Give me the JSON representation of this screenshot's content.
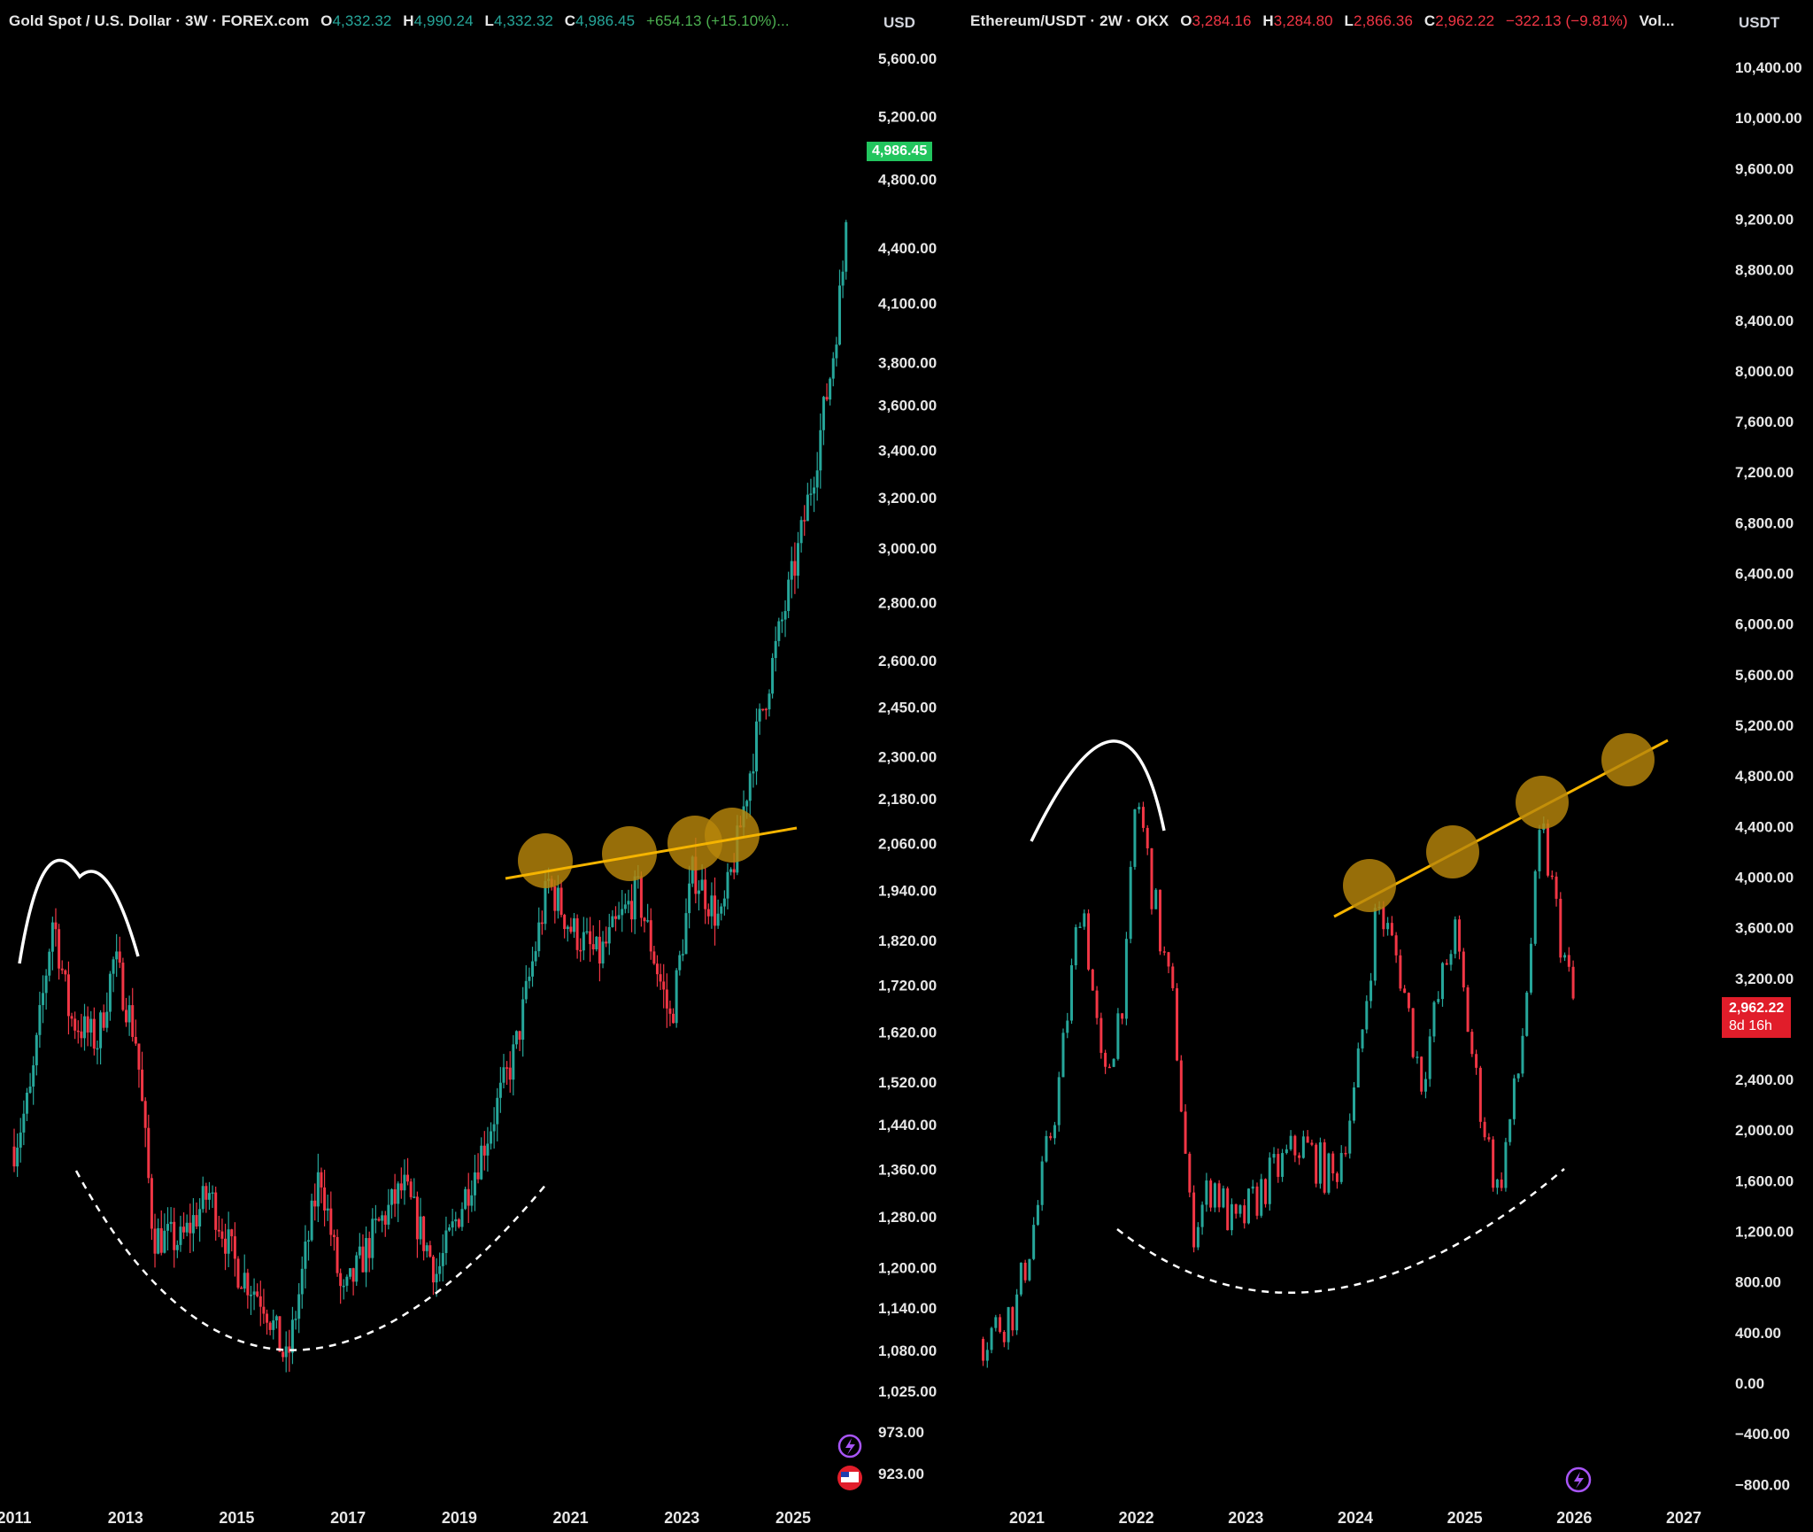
{
  "gold": {
    "legend": {
      "symbol": "Gold Spot / U.S. Dollar · 3W · FOREX.com",
      "o_label": "O",
      "o": "4,332.32",
      "h_label": "H",
      "h": "4,990.24",
      "l_label": "L",
      "l": "4,332.32",
      "c_label": "C",
      "c": "4,986.45",
      "change": "+654.13 (+15.10%)..."
    },
    "currency": "USD",
    "last_price": "4,986.45",
    "colors": {
      "up": "#26a69a",
      "down": "#f23645",
      "tag": "#22c55e",
      "trendline": "#f5b400",
      "circle": "#b8860b"
    }
  },
  "eth": {
    "legend": {
      "symbol": "Ethereum/USDT · 2W · OKX",
      "o_label": "O",
      "o": "3,284.16",
      "h_label": "H",
      "h": "3,284.80",
      "l_label": "L",
      "l": "2,866.36",
      "c_label": "C",
      "c": "2,962.22",
      "change": "−322.13 (−9.81%)",
      "extra": "Vol..."
    },
    "currency": "USDT",
    "last_price": "2,962.22",
    "countdown": "8d 16h",
    "colors": {
      "tag": "#e11d2a"
    }
  },
  "chart_data": [
    {
      "type": "candlestick",
      "title": "Gold Spot / U.S. Dollar · 3W · FOREX.com",
      "x_ticks": [
        "2011",
        "2013",
        "2015",
        "2017",
        "2019",
        "2021",
        "2023",
        "2025"
      ],
      "y_ticks": [
        "5,600.00",
        "5,200.00",
        "4,800.00",
        "4,400.00",
        "4,100.00",
        "3,800.00",
        "3,600.00",
        "3,400.00",
        "3,200.00",
        "3,000.00",
        "2,800.00",
        "2,600.00",
        "2,450.00",
        "2,300.00",
        "2,180.00",
        "2,060.00",
        "1,940.00",
        "1,820.00",
        "1,720.00",
        "1,620.00",
        "1,520.00",
        "1,440.00",
        "1,360.00",
        "1,280.00",
        "1,200.00",
        "1,140.00",
        "1,080.00",
        "1,025.00",
        "973.00",
        "923.00"
      ],
      "y_scale": "log",
      "ylim": [
        900,
        5800
      ],
      "approx_close_path": [
        {
          "x": 2011.0,
          "y": 1400
        },
        {
          "x": 2011.3,
          "y": 1500
        },
        {
          "x": 2011.7,
          "y": 1880
        },
        {
          "x": 2012.0,
          "y": 1650
        },
        {
          "x": 2012.5,
          "y": 1600
        },
        {
          "x": 2012.8,
          "y": 1780
        },
        {
          "x": 2013.2,
          "y": 1600
        },
        {
          "x": 2013.5,
          "y": 1250
        },
        {
          "x": 2014.0,
          "y": 1240
        },
        {
          "x": 2014.5,
          "y": 1320
        },
        {
          "x": 2015.0,
          "y": 1200
        },
        {
          "x": 2015.5,
          "y": 1150
        },
        {
          "x": 2015.9,
          "y": 1060
        },
        {
          "x": 2016.5,
          "y": 1360
        },
        {
          "x": 2016.9,
          "y": 1150
        },
        {
          "x": 2017.5,
          "y": 1260
        },
        {
          "x": 2018.0,
          "y": 1330
        },
        {
          "x": 2018.6,
          "y": 1190
        },
        {
          "x": 2019.0,
          "y": 1290
        },
        {
          "x": 2019.5,
          "y": 1420
        },
        {
          "x": 2020.0,
          "y": 1580
        },
        {
          "x": 2020.6,
          "y": 1960
        },
        {
          "x": 2021.0,
          "y": 1850
        },
        {
          "x": 2021.5,
          "y": 1780
        },
        {
          "x": 2022.2,
          "y": 1940
        },
        {
          "x": 2022.8,
          "y": 1640
        },
        {
          "x": 2023.2,
          "y": 1990
        },
        {
          "x": 2023.7,
          "y": 1860
        },
        {
          "x": 2024.0,
          "y": 2060
        },
        {
          "x": 2024.3,
          "y": 2330
        },
        {
          "x": 2024.7,
          "y": 2650
        },
        {
          "x": 2025.1,
          "y": 3000
        },
        {
          "x": 2025.4,
          "y": 3350
        },
        {
          "x": 2025.7,
          "y": 3800
        },
        {
          "x": 2025.9,
          "y": 4300
        },
        {
          "x": 2026.0,
          "y": 4986
        }
      ]
    },
    {
      "type": "candlestick",
      "title": "Ethereum/USDT · 2W · OKX",
      "x_ticks": [
        "2021",
        "2022",
        "2023",
        "2024",
        "2025",
        "2026",
        "2027"
      ],
      "y_ticks": [
        "10,400.00",
        "10,000.00",
        "9,600.00",
        "9,200.00",
        "8,800.00",
        "8,400.00",
        "8,000.00",
        "7,600.00",
        "7,200.00",
        "6,800.00",
        "6,400.00",
        "6,000.00",
        "5,600.00",
        "5,200.00",
        "4,800.00",
        "4,400.00",
        "4,000.00",
        "3,600.00",
        "3,200.00",
        "2,400.00",
        "2,000.00",
        "1,600.00",
        "1,200.00",
        "800.00",
        "400.00",
        "0.00",
        "−400.00",
        "−800.00"
      ],
      "y_scale": "linear",
      "ylim": [
        -900,
        10600
      ],
      "approx_close_path": [
        {
          "x": 2020.6,
          "y": 350
        },
        {
          "x": 2020.9,
          "y": 600
        },
        {
          "x": 2021.1,
          "y": 1400
        },
        {
          "x": 2021.3,
          "y": 2400
        },
        {
          "x": 2021.5,
          "y": 3900
        },
        {
          "x": 2021.7,
          "y": 2300
        },
        {
          "x": 2021.9,
          "y": 3200
        },
        {
          "x": 2022.0,
          "y": 4700
        },
        {
          "x": 2022.2,
          "y": 3600
        },
        {
          "x": 2022.35,
          "y": 2900
        },
        {
          "x": 2022.5,
          "y": 1200
        },
        {
          "x": 2022.7,
          "y": 1600
        },
        {
          "x": 2022.9,
          "y": 1200
        },
        {
          "x": 2023.2,
          "y": 1600
        },
        {
          "x": 2023.5,
          "y": 1900
        },
        {
          "x": 2023.8,
          "y": 1600
        },
        {
          "x": 2024.0,
          "y": 2300
        },
        {
          "x": 2024.2,
          "y": 3800
        },
        {
          "x": 2024.4,
          "y": 3300
        },
        {
          "x": 2024.6,
          "y": 2400
        },
        {
          "x": 2024.9,
          "y": 3600
        },
        {
          "x": 2025.1,
          "y": 2400
        },
        {
          "x": 2025.3,
          "y": 1500
        },
        {
          "x": 2025.5,
          "y": 2500
        },
        {
          "x": 2025.7,
          "y": 4400
        },
        {
          "x": 2025.9,
          "y": 3400
        },
        {
          "x": 2026.0,
          "y": 2962
        }
      ]
    }
  ]
}
